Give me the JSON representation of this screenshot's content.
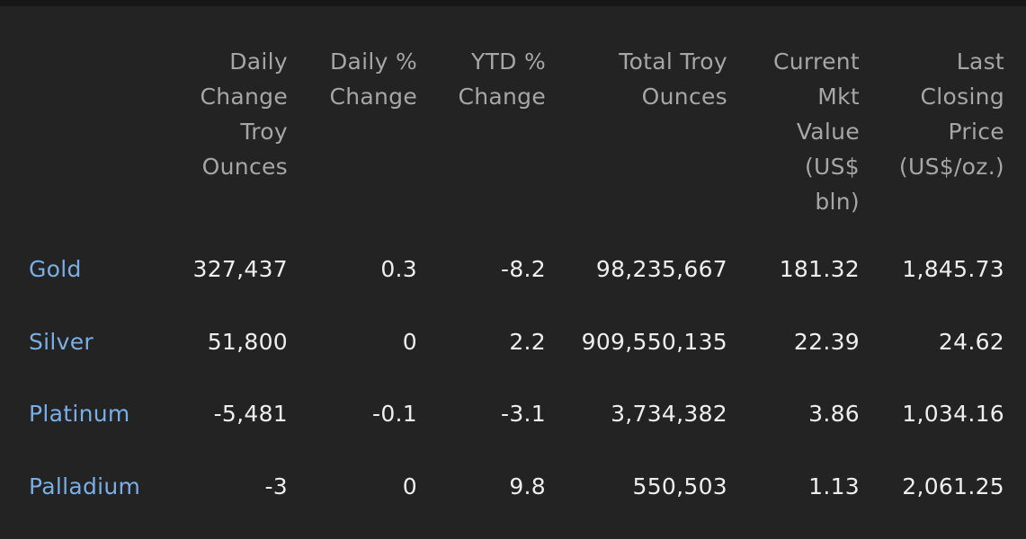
{
  "table": {
    "headers": [
      "",
      [
        "Daily",
        "Change",
        "Troy",
        "Ounces"
      ],
      [
        "Daily %",
        "Change"
      ],
      [
        "YTD %",
        "Change"
      ],
      [
        "Total Troy",
        "Ounces"
      ],
      [
        "Current",
        "Mkt",
        "Value",
        "(US$",
        "bln)"
      ],
      [
        "Last",
        "Closing",
        "Price",
        "(US$/oz.)"
      ]
    ],
    "rows": [
      {
        "name": "Gold",
        "daily_change_oz": "327,437",
        "daily_pct": "0.3",
        "ytd_pct": "-8.2",
        "total_oz": "98,235,667",
        "mkt_value": "181.32",
        "last_price": "1,845.73"
      },
      {
        "name": "Silver",
        "daily_change_oz": "51,800",
        "daily_pct": "0",
        "ytd_pct": "2.2",
        "total_oz": "909,550,135",
        "mkt_value": "22.39",
        "last_price": "24.62"
      },
      {
        "name": "Platinum",
        "daily_change_oz": "-5,481",
        "daily_pct": "-0.1",
        "ytd_pct": "-3.1",
        "total_oz": "3,734,382",
        "mkt_value": "3.86",
        "last_price": "1,034.16"
      },
      {
        "name": "Palladium",
        "daily_change_oz": "-3",
        "daily_pct": "0",
        "ytd_pct": "9.8",
        "total_oz": "550,503",
        "mkt_value": "1.13",
        "last_price": "2,061.25"
      }
    ]
  },
  "colors": {
    "background": "#232323",
    "header_text": "#a6a6a6",
    "cell_text": "#eeeeee",
    "link_text": "#79aee6"
  }
}
